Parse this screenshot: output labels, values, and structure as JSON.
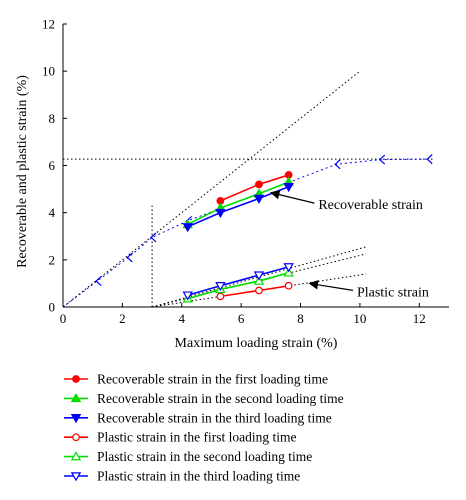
{
  "chart_data": {
    "type": "scatter",
    "xlabel": "Maximum loading strain (%)",
    "ylabel": "Recoverable and plastic strain (%)",
    "xlim": [
      0,
      13
    ],
    "ylim": [
      0,
      12
    ],
    "xticks": [
      0,
      2,
      4,
      6,
      8,
      10,
      12
    ],
    "yticks": [
      0,
      2,
      4,
      6,
      8,
      10,
      12
    ],
    "xtick_labels": [
      "0",
      "2",
      "4",
      "6",
      "8",
      "10",
      "12"
    ],
    "ytick_labels": [
      "0",
      "2",
      "4",
      "6",
      "8",
      "10",
      "12"
    ],
    "grid": false,
    "legend_position": "below",
    "series": [
      {
        "name": "Recoverable strain in the first loading time",
        "color": "#ff0000",
        "marker": "circle",
        "filled": true,
        "line": "solid",
        "x": [
          5.3,
          6.6,
          7.6
        ],
        "y": [
          4.5,
          5.2,
          5.6
        ]
      },
      {
        "name": "Recoverable strain in the second loading time",
        "color": "#00dd00",
        "marker": "triangle-up",
        "filled": true,
        "line": "solid",
        "x": [
          4.2,
          5.3,
          6.6,
          7.6
        ],
        "y": [
          3.5,
          4.2,
          4.8,
          5.3
        ]
      },
      {
        "name": "Recoverable strain in the third loading time",
        "color": "#0000ff",
        "marker": "triangle-down",
        "filled": true,
        "line": "solid",
        "x": [
          4.2,
          5.3,
          6.6,
          7.6
        ],
        "y": [
          3.4,
          4.0,
          4.6,
          5.1
        ]
      },
      {
        "name": "Plastic strain in the first loading time",
        "color": "#ff0000",
        "marker": "circle",
        "filled": false,
        "line": "solid",
        "x": [
          5.3,
          6.6,
          7.6
        ],
        "y": [
          0.45,
          0.7,
          0.9
        ]
      },
      {
        "name": "Plastic strain in the second loading time",
        "color": "#00dd00",
        "marker": "triangle-up",
        "filled": false,
        "line": "solid",
        "x": [
          4.2,
          5.3,
          6.6,
          7.6
        ],
        "y": [
          0.35,
          0.75,
          1.1,
          1.45
        ]
      },
      {
        "name": "Plastic strain in the third loading time",
        "color": "#0000ff",
        "marker": "triangle-down",
        "filled": false,
        "line": "solid",
        "x": [
          4.2,
          5.3,
          6.6,
          7.6
        ],
        "y": [
          0.5,
          0.9,
          1.35,
          1.7
        ]
      }
    ],
    "guide_lines": [
      {
        "from": [
          0,
          0
        ],
        "to": [
          10,
          10
        ],
        "color": "#000000",
        "style": "dotted"
      },
      {
        "from": [
          0,
          6.27
        ],
        "to": [
          12.5,
          6.27
        ],
        "color": "#000000",
        "style": "dotted"
      },
      {
        "from": [
          3.0,
          0
        ],
        "to": [
          3.0,
          4.3
        ],
        "color": "#000000",
        "style": "dotted"
      },
      {
        "from": [
          3.0,
          0
        ],
        "to": [
          10.2,
          2.55
        ],
        "color": "#000000",
        "style": "dotted"
      },
      {
        "from": [
          3.0,
          0
        ],
        "to": [
          10.2,
          2.25
        ],
        "color": "#000000",
        "style": "dotted"
      },
      {
        "from": [
          3.0,
          0
        ],
        "to": [
          10.2,
          1.4
        ],
        "color": "#000000",
        "style": "dotted"
      }
    ],
    "extrapolated_series": {
      "color": "#0000ff",
      "marker": "open-left-arrow",
      "line": "dotted",
      "x": [
        0.0,
        1.15,
        2.2,
        3.0,
        4.2,
        9.2,
        10.7,
        12.3
      ],
      "y": [
        0.0,
        1.1,
        2.1,
        2.95,
        3.65,
        6.05,
        6.25,
        6.27
      ]
    },
    "annotations": [
      {
        "text": "Recoverable strain",
        "arrow_to": [
          7.0,
          4.85
        ],
        "text_at": [
          8.6,
          4.15
        ]
      },
      {
        "text": "Plastic strain",
        "arrow_to": [
          8.3,
          1.0
        ],
        "text_at": [
          9.9,
          0.45
        ]
      }
    ]
  }
}
